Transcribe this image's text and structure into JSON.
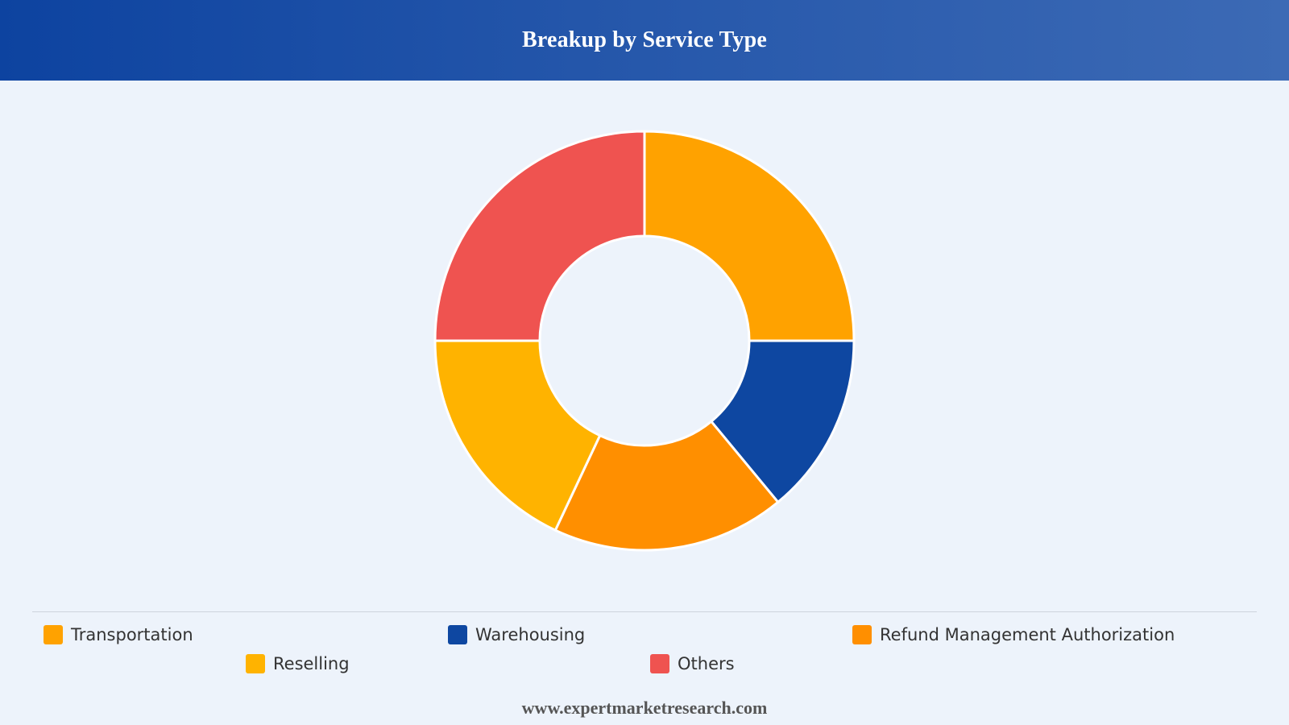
{
  "header": {
    "title": "Breakup by Service Type"
  },
  "chart_data": {
    "type": "pie",
    "variant": "donut",
    "title": "Breakup by Service Type",
    "categories": [
      "Transportation",
      "Warehousing",
      "Refund Management Authorization",
      "Reselling",
      "Others"
    ],
    "values": [
      25,
      14,
      18,
      18,
      25
    ],
    "unit": "%",
    "colors": [
      "#ffa200",
      "#0e47a1",
      "#ff8f00",
      "#ffb300",
      "#ef5350"
    ],
    "start_angle": "12 o'clock",
    "direction": "clockwise",
    "legend_position": "bottom"
  },
  "legend": {
    "items": [
      {
        "label": "Transportation",
        "color": "#ffa200"
      },
      {
        "label": "Warehousing",
        "color": "#0e47a1"
      },
      {
        "label": "Refund Management Authorization",
        "color": "#ff8f00"
      },
      {
        "label": "Reselling",
        "color": "#ffb300"
      },
      {
        "label": "Others",
        "color": "#ef5350"
      }
    ]
  },
  "footer": {
    "text": "www.expertmarketresearch.com"
  }
}
